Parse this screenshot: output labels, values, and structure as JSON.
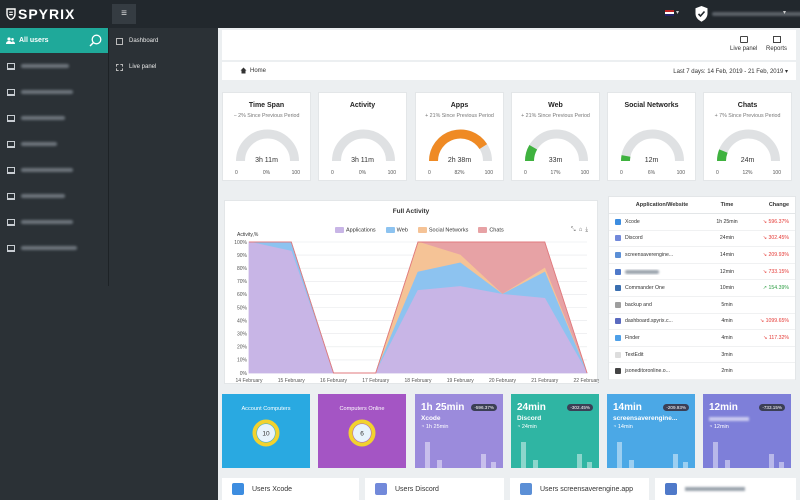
{
  "brand": {
    "name": "SPYRIX"
  },
  "sidebar": {
    "all_users": "All users",
    "device_count": 8
  },
  "nav": {
    "dashboard": "Dashboard",
    "live_panel": "Live panel"
  },
  "header": {
    "live_panel": "Live panel",
    "reports": "Reports"
  },
  "crumb": {
    "home": "Home",
    "range": "Last 7 days: 14 Feb, 2019 - 21 Feb, 2019"
  },
  "gauges": [
    {
      "title": "Time Span",
      "delta": "− 2% Since Previous Period",
      "value": "3h 11m",
      "pct": "0%",
      "fill": 0,
      "color": "#d8dadc"
    },
    {
      "title": "Activity",
      "delta": "",
      "value": "3h 11m",
      "pct": "0%",
      "fill": 0,
      "color": "#d8dadc"
    },
    {
      "title": "Apps",
      "delta": "+ 21% Since Previous Period",
      "value": "2h 38m",
      "pct": "82%",
      "fill": 0.82,
      "color": "#ef8a24"
    },
    {
      "title": "Web",
      "delta": "+ 21% Since Previous Period",
      "value": "33m",
      "pct": "17%",
      "fill": 0.17,
      "color": "#3fb23f"
    },
    {
      "title": "Social Networks",
      "delta": "",
      "value": "12m",
      "pct": "6%",
      "fill": 0.06,
      "color": "#3fb23f"
    },
    {
      "title": "Chats",
      "delta": "+ 7% Since Previous Period",
      "value": "24m",
      "pct": "12%",
      "fill": 0.12,
      "color": "#3fb23f"
    }
  ],
  "gauge_min": "0",
  "gauge_max": "100",
  "chart_data": {
    "type": "area",
    "title": "Full Activity",
    "ylabel": "Activity,%",
    "ylim": [
      0,
      100
    ],
    "yticks": [
      "100%",
      "90%",
      "80%",
      "70%",
      "60%",
      "50%",
      "40%",
      "30%",
      "20%",
      "10%",
      "0%"
    ],
    "x": [
      "14 February",
      "15 February",
      "16 February",
      "17 February",
      "18 February",
      "19 February",
      "20 February",
      "21 February",
      "22 February"
    ],
    "series": [
      {
        "name": "Applications",
        "color": "#c8b5e6",
        "values": [
          100,
          93,
          0,
          0,
          63,
          66,
          60,
          57,
          0
        ]
      },
      {
        "name": "Web",
        "color": "#8dc3f0",
        "values": [
          0,
          7,
          0,
          0,
          14,
          18,
          0,
          20,
          0
        ]
      },
      {
        "name": "Social Networks",
        "color": "#f5c396",
        "values": [
          0,
          0,
          0,
          0,
          23,
          6,
          0,
          3,
          0
        ]
      },
      {
        "name": "Chats",
        "color": "#e7a2a5",
        "values": [
          0,
          0,
          0,
          0,
          0,
          10,
          40,
          20,
          0
        ]
      }
    ],
    "legend_position": "top-center",
    "grid": true
  },
  "table": {
    "headers": [
      "Application/Website",
      "Time",
      "Change"
    ],
    "rows": [
      {
        "name": "Xcode",
        "time": "1h 25min",
        "change": "596.37%",
        "dir": "down",
        "icon": "#3d8de0",
        "blur": false
      },
      {
        "name": "Discord",
        "time": "24min",
        "change": "302.45%",
        "dir": "down",
        "icon": "#7289da",
        "blur": false
      },
      {
        "name": "screensaverengine...",
        "time": "14min",
        "change": "209.93%",
        "dir": "down",
        "icon": "#5b8fd6",
        "blur": false
      },
      {
        "name": "",
        "time": "12min",
        "change": "733.15%",
        "dir": "down",
        "icon": "#4f79c9",
        "blur": true
      },
      {
        "name": "Commander One",
        "time": "10min",
        "change": "154.39%",
        "dir": "up",
        "icon": "#3a6fb0",
        "blur": false
      },
      {
        "name": "backup and",
        "time": "5min",
        "change": "",
        "dir": "",
        "icon": "#9e9e9e",
        "blur": false
      },
      {
        "name": "dashboard.spyrix.c...",
        "time": "4min",
        "change": "1099.65%",
        "dir": "down",
        "icon": "#5a6abf",
        "blur": false
      },
      {
        "name": "Finder",
        "time": "4min",
        "change": "117.32%",
        "dir": "down",
        "icon": "#4ea0e8",
        "blur": false
      },
      {
        "name": "TextEdit",
        "time": "3min",
        "change": "",
        "dir": "",
        "icon": "#dddddd",
        "blur": false
      },
      {
        "name": "jsoneditoronline.o...",
        "time": "2min",
        "change": "",
        "dir": "",
        "icon": "#444444",
        "blur": false
      }
    ]
  },
  "tiles": [
    {
      "kind": "ring",
      "title": "Account Computers",
      "value": "10",
      "bg": "#29a9e1",
      "ring": "#f2d22e"
    },
    {
      "kind": "ring",
      "title": "Computers Online",
      "value": "6",
      "bg": "#a455c4",
      "ring": "#f2d22e"
    },
    {
      "kind": "app",
      "big": "1h 25min",
      "sub": "Xcode",
      "time": "1h 25min",
      "badge": "-596.37%",
      "bg": "#9b8bdc"
    },
    {
      "kind": "app",
      "big": "24min",
      "sub": "Discord",
      "time": "24min",
      "badge": "-302.45%",
      "bg": "#2fb5a3"
    },
    {
      "kind": "app",
      "big": "14min",
      "sub": "screensaverengine...",
      "time": "14min",
      "badge": "-209.93%",
      "bg": "#4ba8e6"
    },
    {
      "kind": "app",
      "big": "12min",
      "sub": "",
      "time": "12min",
      "badge": "-733.15%",
      "bg": "#7e7fd9"
    }
  ],
  "bottom_cards": [
    {
      "label": "Users Xcode",
      "icon": "#3d8de0"
    },
    {
      "label": "Users Discord",
      "icon": "#7289da"
    },
    {
      "label": "Users screensaverengine.app",
      "icon": "#5b8fd6"
    },
    {
      "label": "",
      "icon": "#4f79c9"
    }
  ]
}
